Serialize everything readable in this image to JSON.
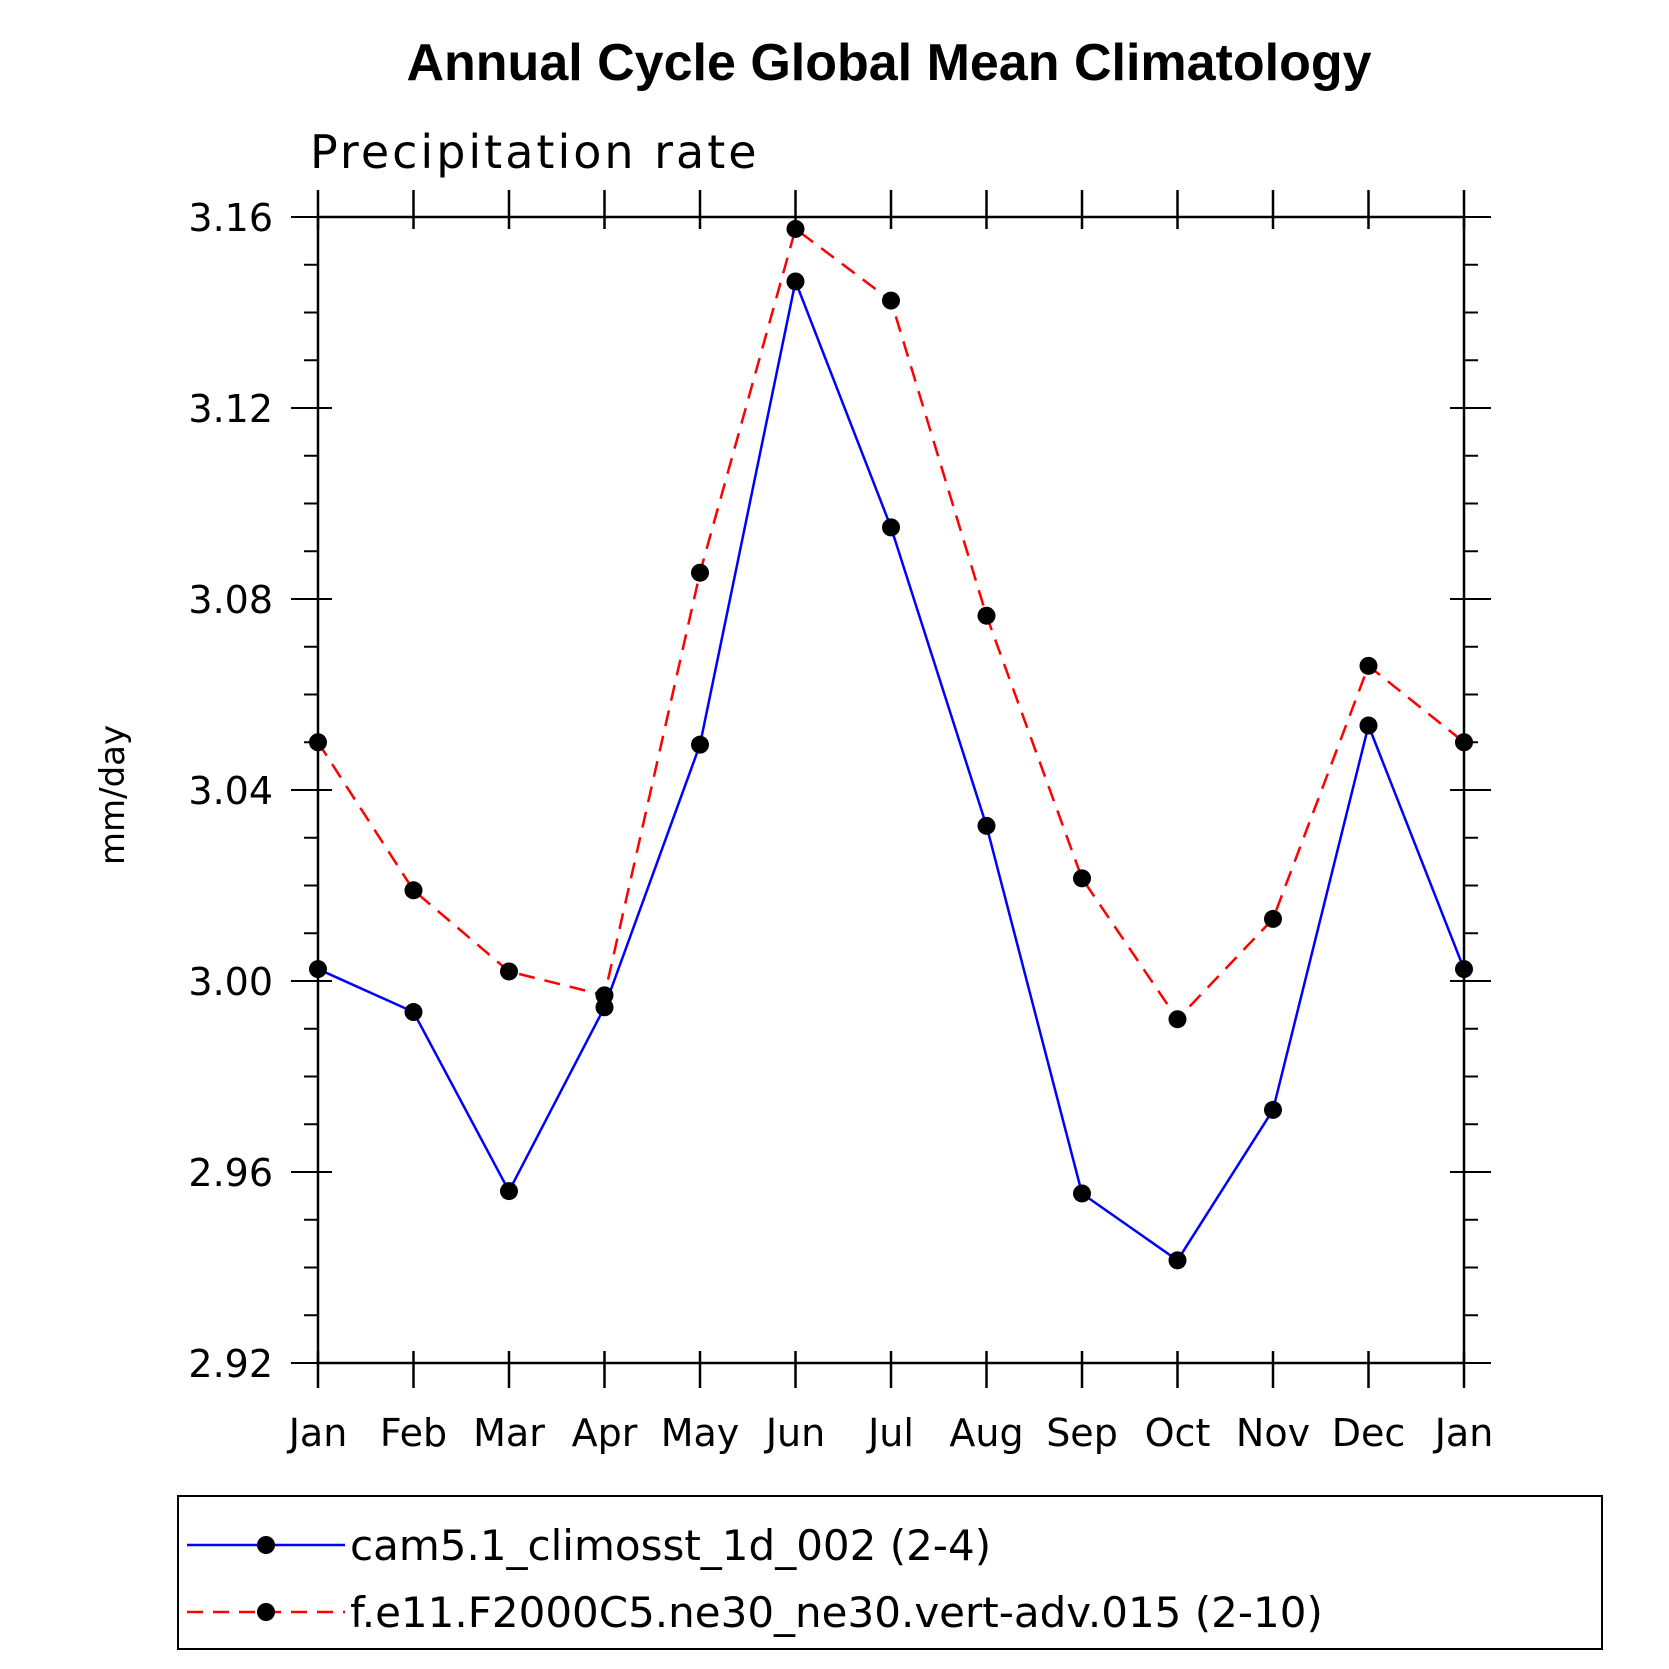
{
  "chart_data": {
    "type": "line",
    "title": "Annual Cycle Global Mean Climatology",
    "subtitle": "Precipitation rate",
    "ylabel": "mm/day",
    "xlabel": "",
    "categories": [
      "Jan",
      "Feb",
      "Mar",
      "Apr",
      "May",
      "Jun",
      "Jul",
      "Aug",
      "Sep",
      "Oct",
      "Nov",
      "Dec",
      "Jan"
    ],
    "ylim": [
      2.92,
      3.16
    ],
    "yticks": [
      "2.92",
      "2.96",
      "3.00",
      "3.04",
      "3.08",
      "3.12",
      "3.16"
    ],
    "series": [
      {
        "name": "cam5.1_climosst_1d_002 (2-4)",
        "color": "#0000ff",
        "dash": "solid",
        "values": [
          3.0025,
          2.9935,
          2.956,
          2.9945,
          3.0495,
          3.1465,
          3.095,
          3.0325,
          2.9555,
          2.9415,
          2.973,
          3.0535,
          3.0025
        ]
      },
      {
        "name": "f.e11.F2000C5.ne30_ne30.vert-adv.015 (2-10)",
        "color": "#ff0000",
        "dash": "dashed",
        "values": [
          3.05,
          3.019,
          3.002,
          2.997,
          3.0855,
          3.1575,
          3.1425,
          3.0765,
          3.0215,
          2.992,
          3.013,
          3.066,
          3.05
        ]
      }
    ],
    "legend_position": "bottom"
  }
}
